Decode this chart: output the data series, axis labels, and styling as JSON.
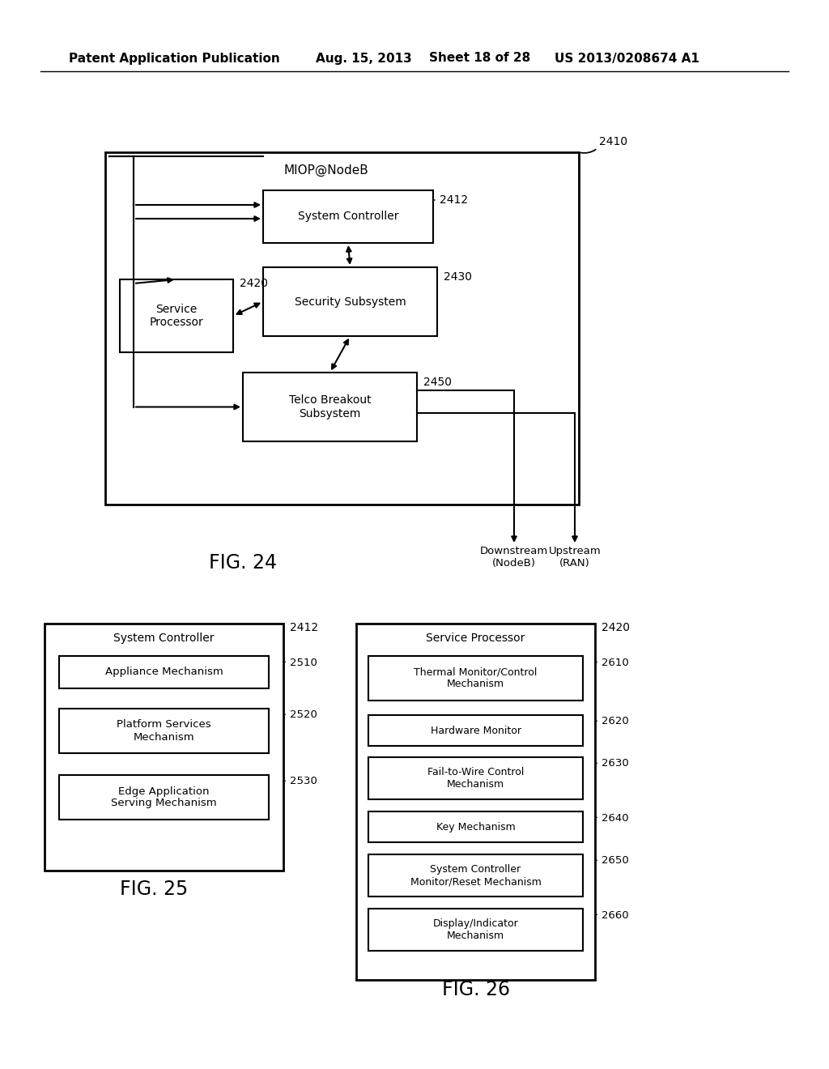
{
  "bg_color": "#ffffff",
  "header_text": "Patent Application Publication",
  "header_date": "Aug. 15, 2013",
  "header_sheet": "Sheet 18 of 28",
  "header_patent": "US 2013/0208674 A1",
  "fig24_label": "FIG. 24",
  "fig25_label": "FIG. 25",
  "fig26_label": "FIG. 26",
  "miop_label": "MIOP@NodeB",
  "miop_ref": "2410",
  "sys_ctrl_label": "System Controller",
  "sys_ctrl_ref": "2412",
  "sec_sub_label": "Security Subsystem",
  "sec_sub_ref": "2430",
  "svc_proc_label": "Service\nProcessor",
  "svc_proc_ref": "2420",
  "telco_label": "Telco Breakout\nSubsystem",
  "telco_ref": "2450",
  "downstream_label": "Downstream\n(NodeB)",
  "upstream_label": "Upstream\n(RAN)",
  "fig25_title": "System Controller",
  "fig25_ref": "2412",
  "appliance_label": "Appliance Mechanism",
  "appliance_ref": "2510",
  "platform_label": "Platform Services\nMechanism",
  "platform_ref": "2520",
  "edge_app_label": "Edge Application\nServing Mechanism",
  "edge_app_ref": "2530",
  "fig26_title": "Service Processor",
  "fig26_ref": "2420",
  "thermal_label": "Thermal Monitor/Control\nMechanism",
  "thermal_ref": "2610",
  "hw_monitor_label": "Hardware Monitor",
  "hw_monitor_ref": "2620",
  "fail_label": "Fail-to-Wire Control\nMechanism",
  "fail_ref": "2630",
  "key_label": "Key Mechanism",
  "key_ref": "2640",
  "sysctrl_monitor_label": "System Controller\nMonitor/Reset Mechanism",
  "sysctrl_monitor_ref": "2650",
  "display_label": "Display/Indicator\nMechanism",
  "display_ref": "2660"
}
